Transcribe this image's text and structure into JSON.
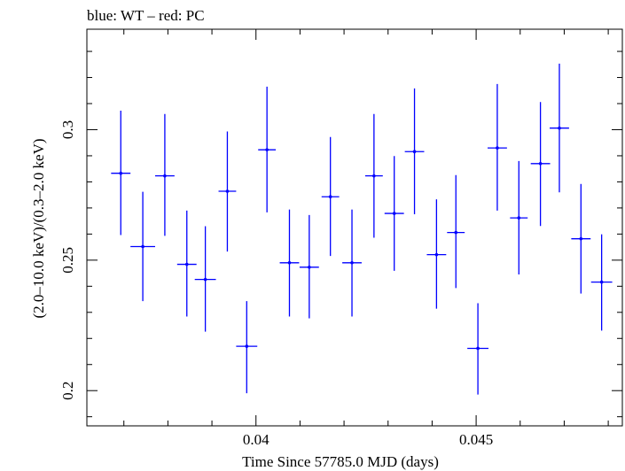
{
  "chart_data": {
    "type": "scatter",
    "title": "blue: WT – red: PC",
    "xlabel": "Time Since 57785.0 MJD (days)",
    "ylabel": "(2.0–10.0 keV)/(0.3–2.0 keV)",
    "xlim": [
      0.03616,
      0.04832
    ],
    "ylim": [
      0.1865,
      0.3385
    ],
    "xticks": [
      {
        "value": 0.04,
        "label": "0.04"
      },
      {
        "value": 0.045,
        "label": "0.045"
      }
    ],
    "yticks": [
      {
        "value": 0.2,
        "label": "0.2"
      },
      {
        "value": 0.25,
        "label": "0.25"
      },
      {
        "value": 0.3,
        "label": "0.3"
      }
    ],
    "grid": false,
    "series": [
      {
        "color": "#0000ff",
        "points": [
          {
            "x": 0.03693,
            "y": 0.2833,
            "xerr": 0.00022,
            "ylo": 0.2596,
            "yhi": 0.3073
          },
          {
            "x": 0.03743,
            "y": 0.2552,
            "xerr": 0.00028,
            "ylo": 0.2343,
            "yhi": 0.2762
          },
          {
            "x": 0.03793,
            "y": 0.2823,
            "xerr": 0.00022,
            "ylo": 0.2593,
            "yhi": 0.306
          },
          {
            "x": 0.03843,
            "y": 0.2484,
            "xerr": 0.00022,
            "ylo": 0.2284,
            "yhi": 0.269
          },
          {
            "x": 0.03885,
            "y": 0.2426,
            "xerr": 0.00024,
            "ylo": 0.2226,
            "yhi": 0.263
          },
          {
            "x": 0.03935,
            "y": 0.2764,
            "xerr": 0.0002,
            "ylo": 0.2533,
            "yhi": 0.2993
          },
          {
            "x": 0.03979,
            "y": 0.217,
            "xerr": 0.00024,
            "ylo": 0.199,
            "yhi": 0.2343
          },
          {
            "x": 0.04025,
            "y": 0.2923,
            "xerr": 0.0002,
            "ylo": 0.2683,
            "yhi": 0.3165
          },
          {
            "x": 0.04076,
            "y": 0.249,
            "xerr": 0.00022,
            "ylo": 0.2284,
            "yhi": 0.2694
          },
          {
            "x": 0.04121,
            "y": 0.2473,
            "xerr": 0.00022,
            "ylo": 0.2277,
            "yhi": 0.2673
          },
          {
            "x": 0.04169,
            "y": 0.2743,
            "xerr": 0.0002,
            "ylo": 0.2516,
            "yhi": 0.2972
          },
          {
            "x": 0.04218,
            "y": 0.249,
            "xerr": 0.00022,
            "ylo": 0.2284,
            "yhi": 0.2694
          },
          {
            "x": 0.04268,
            "y": 0.2823,
            "xerr": 0.0002,
            "ylo": 0.2586,
            "yhi": 0.306
          },
          {
            "x": 0.04314,
            "y": 0.2679,
            "xerr": 0.00022,
            "ylo": 0.2459,
            "yhi": 0.2899
          },
          {
            "x": 0.0436,
            "y": 0.2916,
            "xerr": 0.00022,
            "ylo": 0.2676,
            "yhi": 0.3158
          },
          {
            "x": 0.0441,
            "y": 0.2521,
            "xerr": 0.00022,
            "ylo": 0.2314,
            "yhi": 0.2733
          },
          {
            "x": 0.04454,
            "y": 0.2606,
            "xerr": 0.0002,
            "ylo": 0.2393,
            "yhi": 0.2826
          },
          {
            "x": 0.04504,
            "y": 0.2162,
            "xerr": 0.00024,
            "ylo": 0.1985,
            "yhi": 0.2335
          },
          {
            "x": 0.04548,
            "y": 0.293,
            "xerr": 0.00022,
            "ylo": 0.269,
            "yhi": 0.3175
          },
          {
            "x": 0.04597,
            "y": 0.2662,
            "xerr": 0.0002,
            "ylo": 0.2445,
            "yhi": 0.288
          },
          {
            "x": 0.04646,
            "y": 0.287,
            "xerr": 0.00022,
            "ylo": 0.2631,
            "yhi": 0.3106
          },
          {
            "x": 0.04689,
            "y": 0.3006,
            "xerr": 0.00022,
            "ylo": 0.276,
            "yhi": 0.3253
          },
          {
            "x": 0.04738,
            "y": 0.2582,
            "xerr": 0.00022,
            "ylo": 0.2372,
            "yhi": 0.2792
          },
          {
            "x": 0.04785,
            "y": 0.2416,
            "xerr": 0.00024,
            "ylo": 0.223,
            "yhi": 0.2599
          }
        ]
      }
    ]
  }
}
